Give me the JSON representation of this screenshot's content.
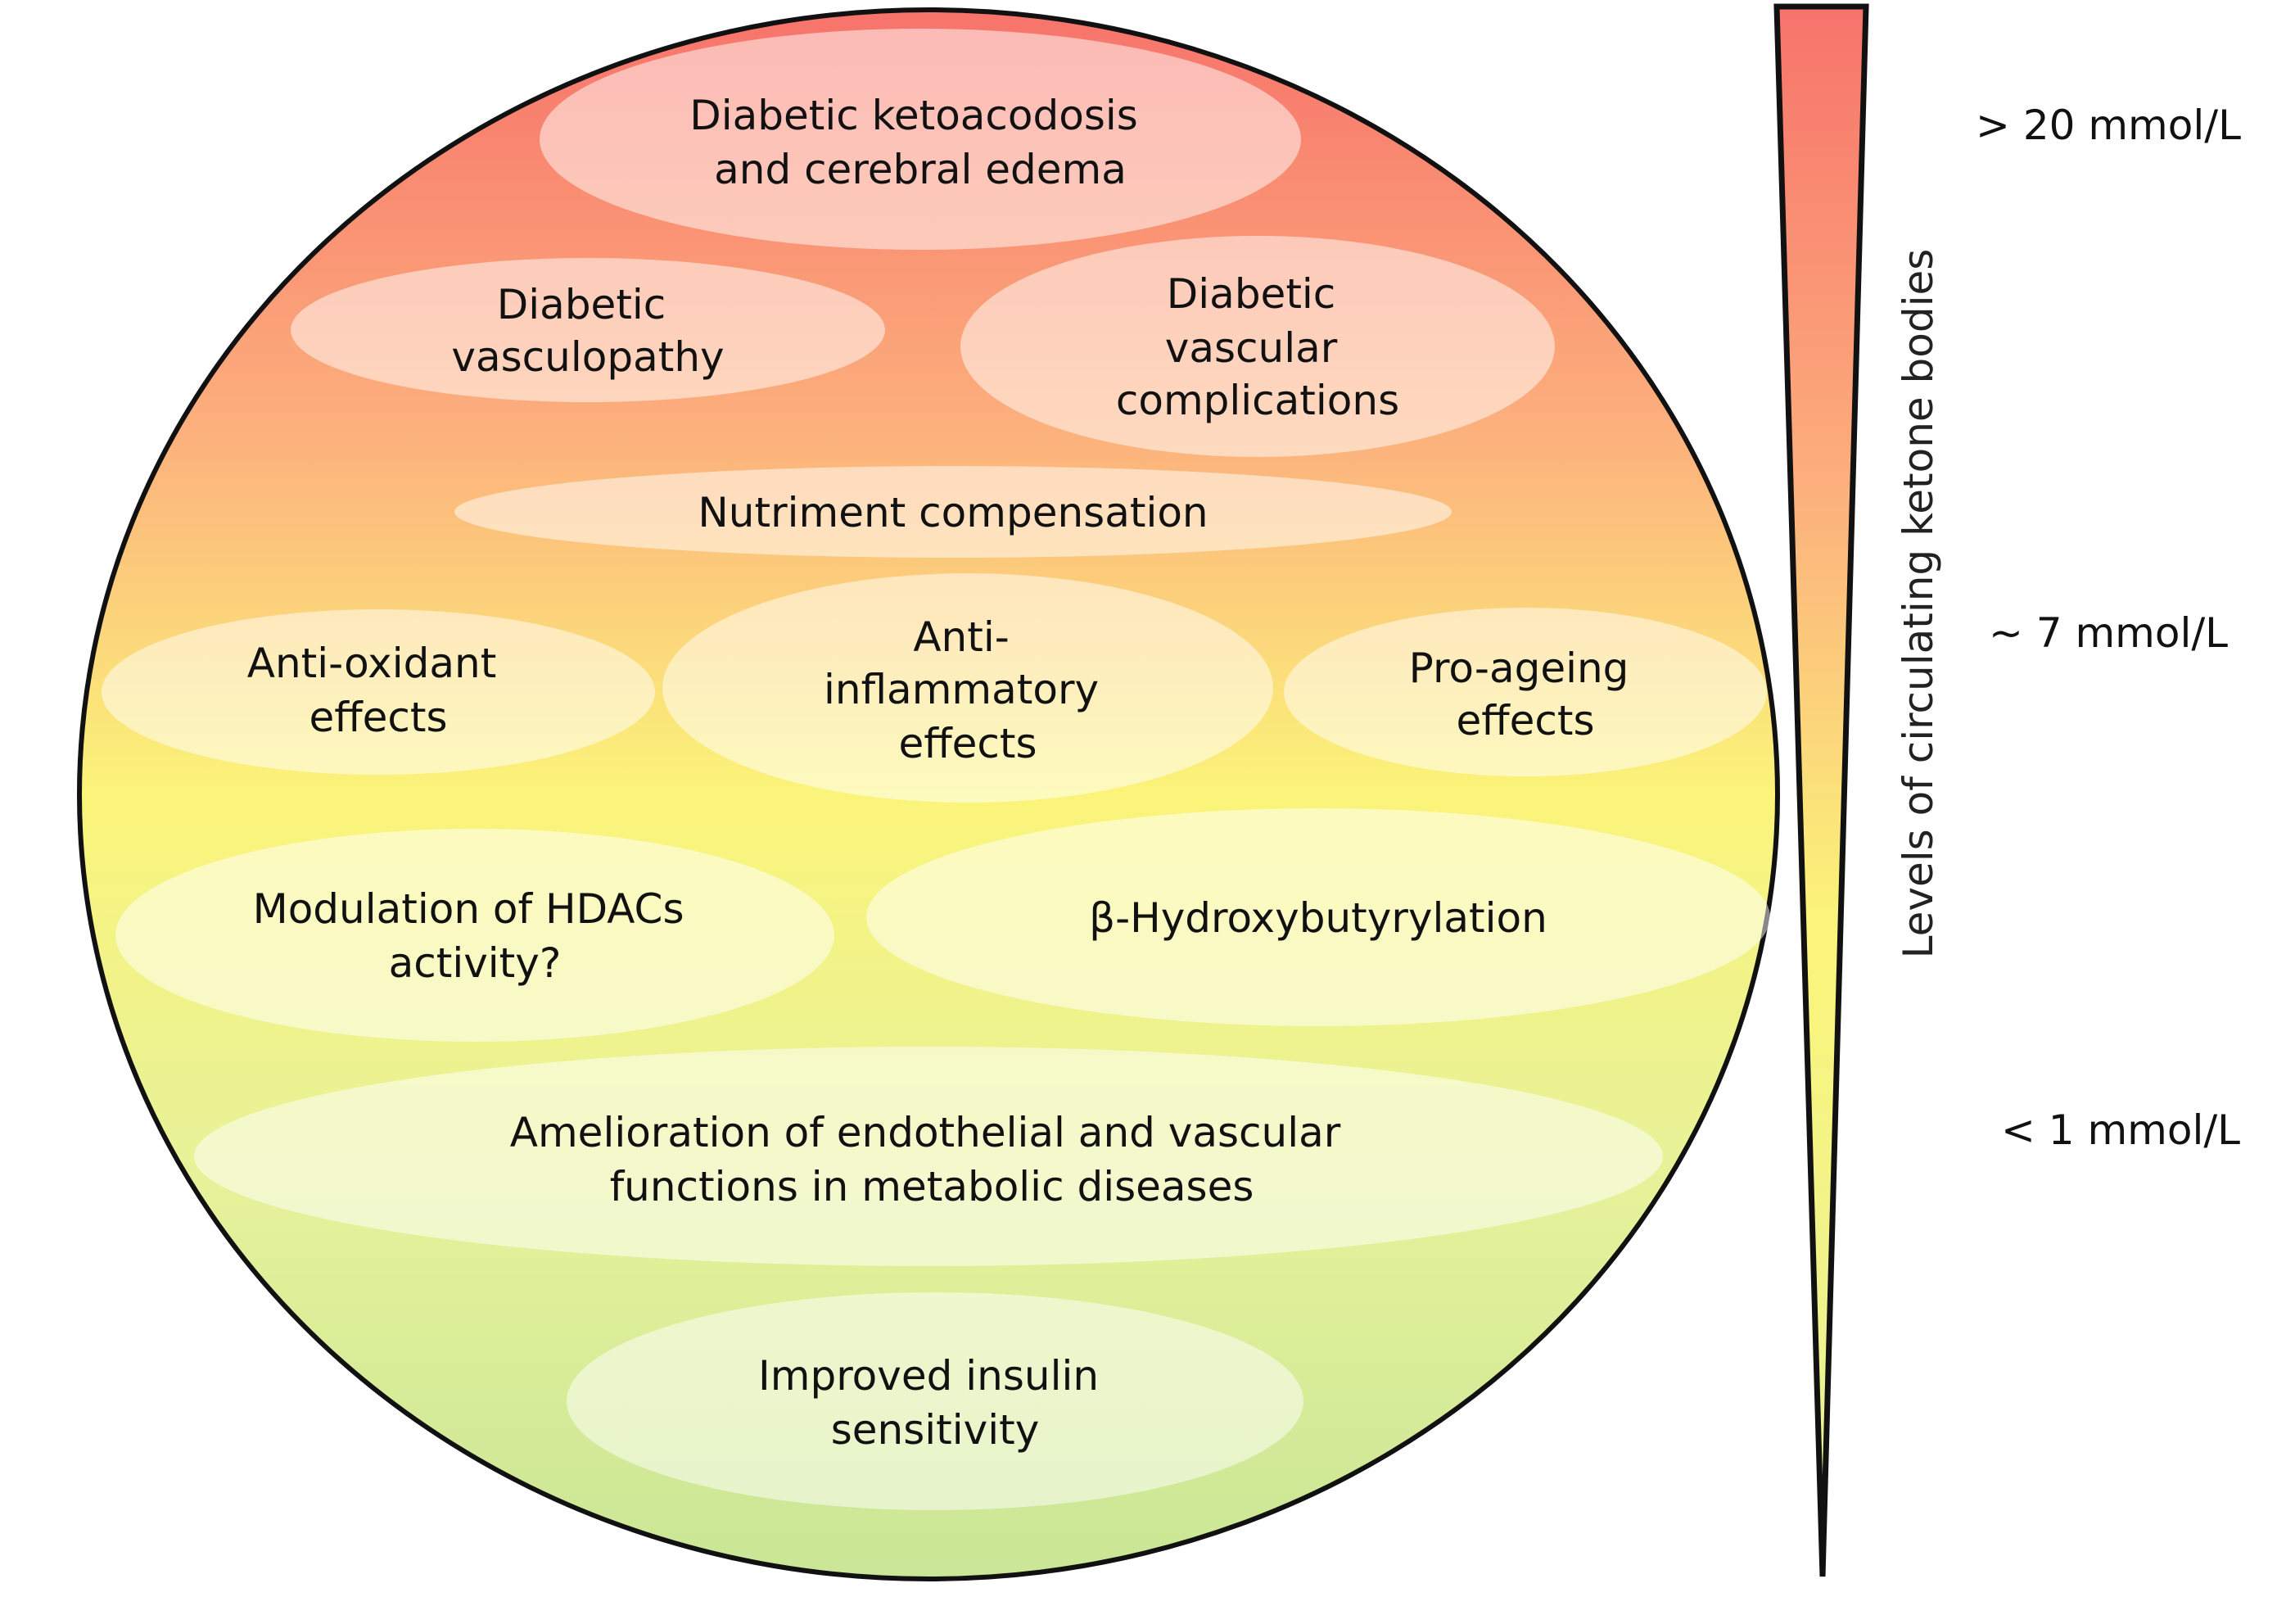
{
  "ellipses": [
    {
      "id": "diabetic-ketoacidosis",
      "lines": [
        "Diabetic ketoacodosis",
        "and cerebral edema"
      ]
    },
    {
      "id": "diabetic-vasculopathy",
      "lines": [
        "Diabetic",
        "vasculopathy"
      ]
    },
    {
      "id": "diabetic-vascular-complications",
      "lines": [
        "Diabetic",
        "vascular",
        "complications"
      ]
    },
    {
      "id": "nutriment-compensation",
      "lines": [
        "Nutriment compensation"
      ]
    },
    {
      "id": "anti-oxidant-effects",
      "lines": [
        "Anti-oxidant",
        "effects"
      ]
    },
    {
      "id": "anti-inflammatory-effects",
      "lines": [
        "Anti-",
        "inflammatory",
        "effects"
      ]
    },
    {
      "id": "pro-ageing-effects",
      "lines": [
        "Pro-ageing",
        "effects"
      ]
    },
    {
      "id": "modulation-hdacs",
      "lines": [
        "Modulation of HDACs",
        "activity?"
      ]
    },
    {
      "id": "beta-hydroxybutyrylation",
      "lines": [
        "β-Hydroxybutyrylation"
      ]
    },
    {
      "id": "amelioration-endothelial",
      "lines": [
        "Amelioration of endothelial and vascular",
        "functions in metabolic diseases"
      ]
    },
    {
      "id": "improved-insulin-sensitivity",
      "lines": [
        "Improved insulin",
        "sensitivity"
      ]
    }
  ],
  "scale": {
    "axis_label": "Levels of circulating ketone bodies",
    "levels": [
      {
        "id": "high",
        "label": "> 20 mmol/L"
      },
      {
        "id": "mid",
        "label": "~ 7 mmol/L"
      },
      {
        "id": "low",
        "label": "< 1 mmol/L"
      }
    ]
  },
  "colors": {
    "top": "#f7736b",
    "upper": "#fcae7c",
    "middle": "#fbf47a",
    "lower": "#e6f29a",
    "bottom": "#c9e696",
    "outline": "#111111"
  }
}
